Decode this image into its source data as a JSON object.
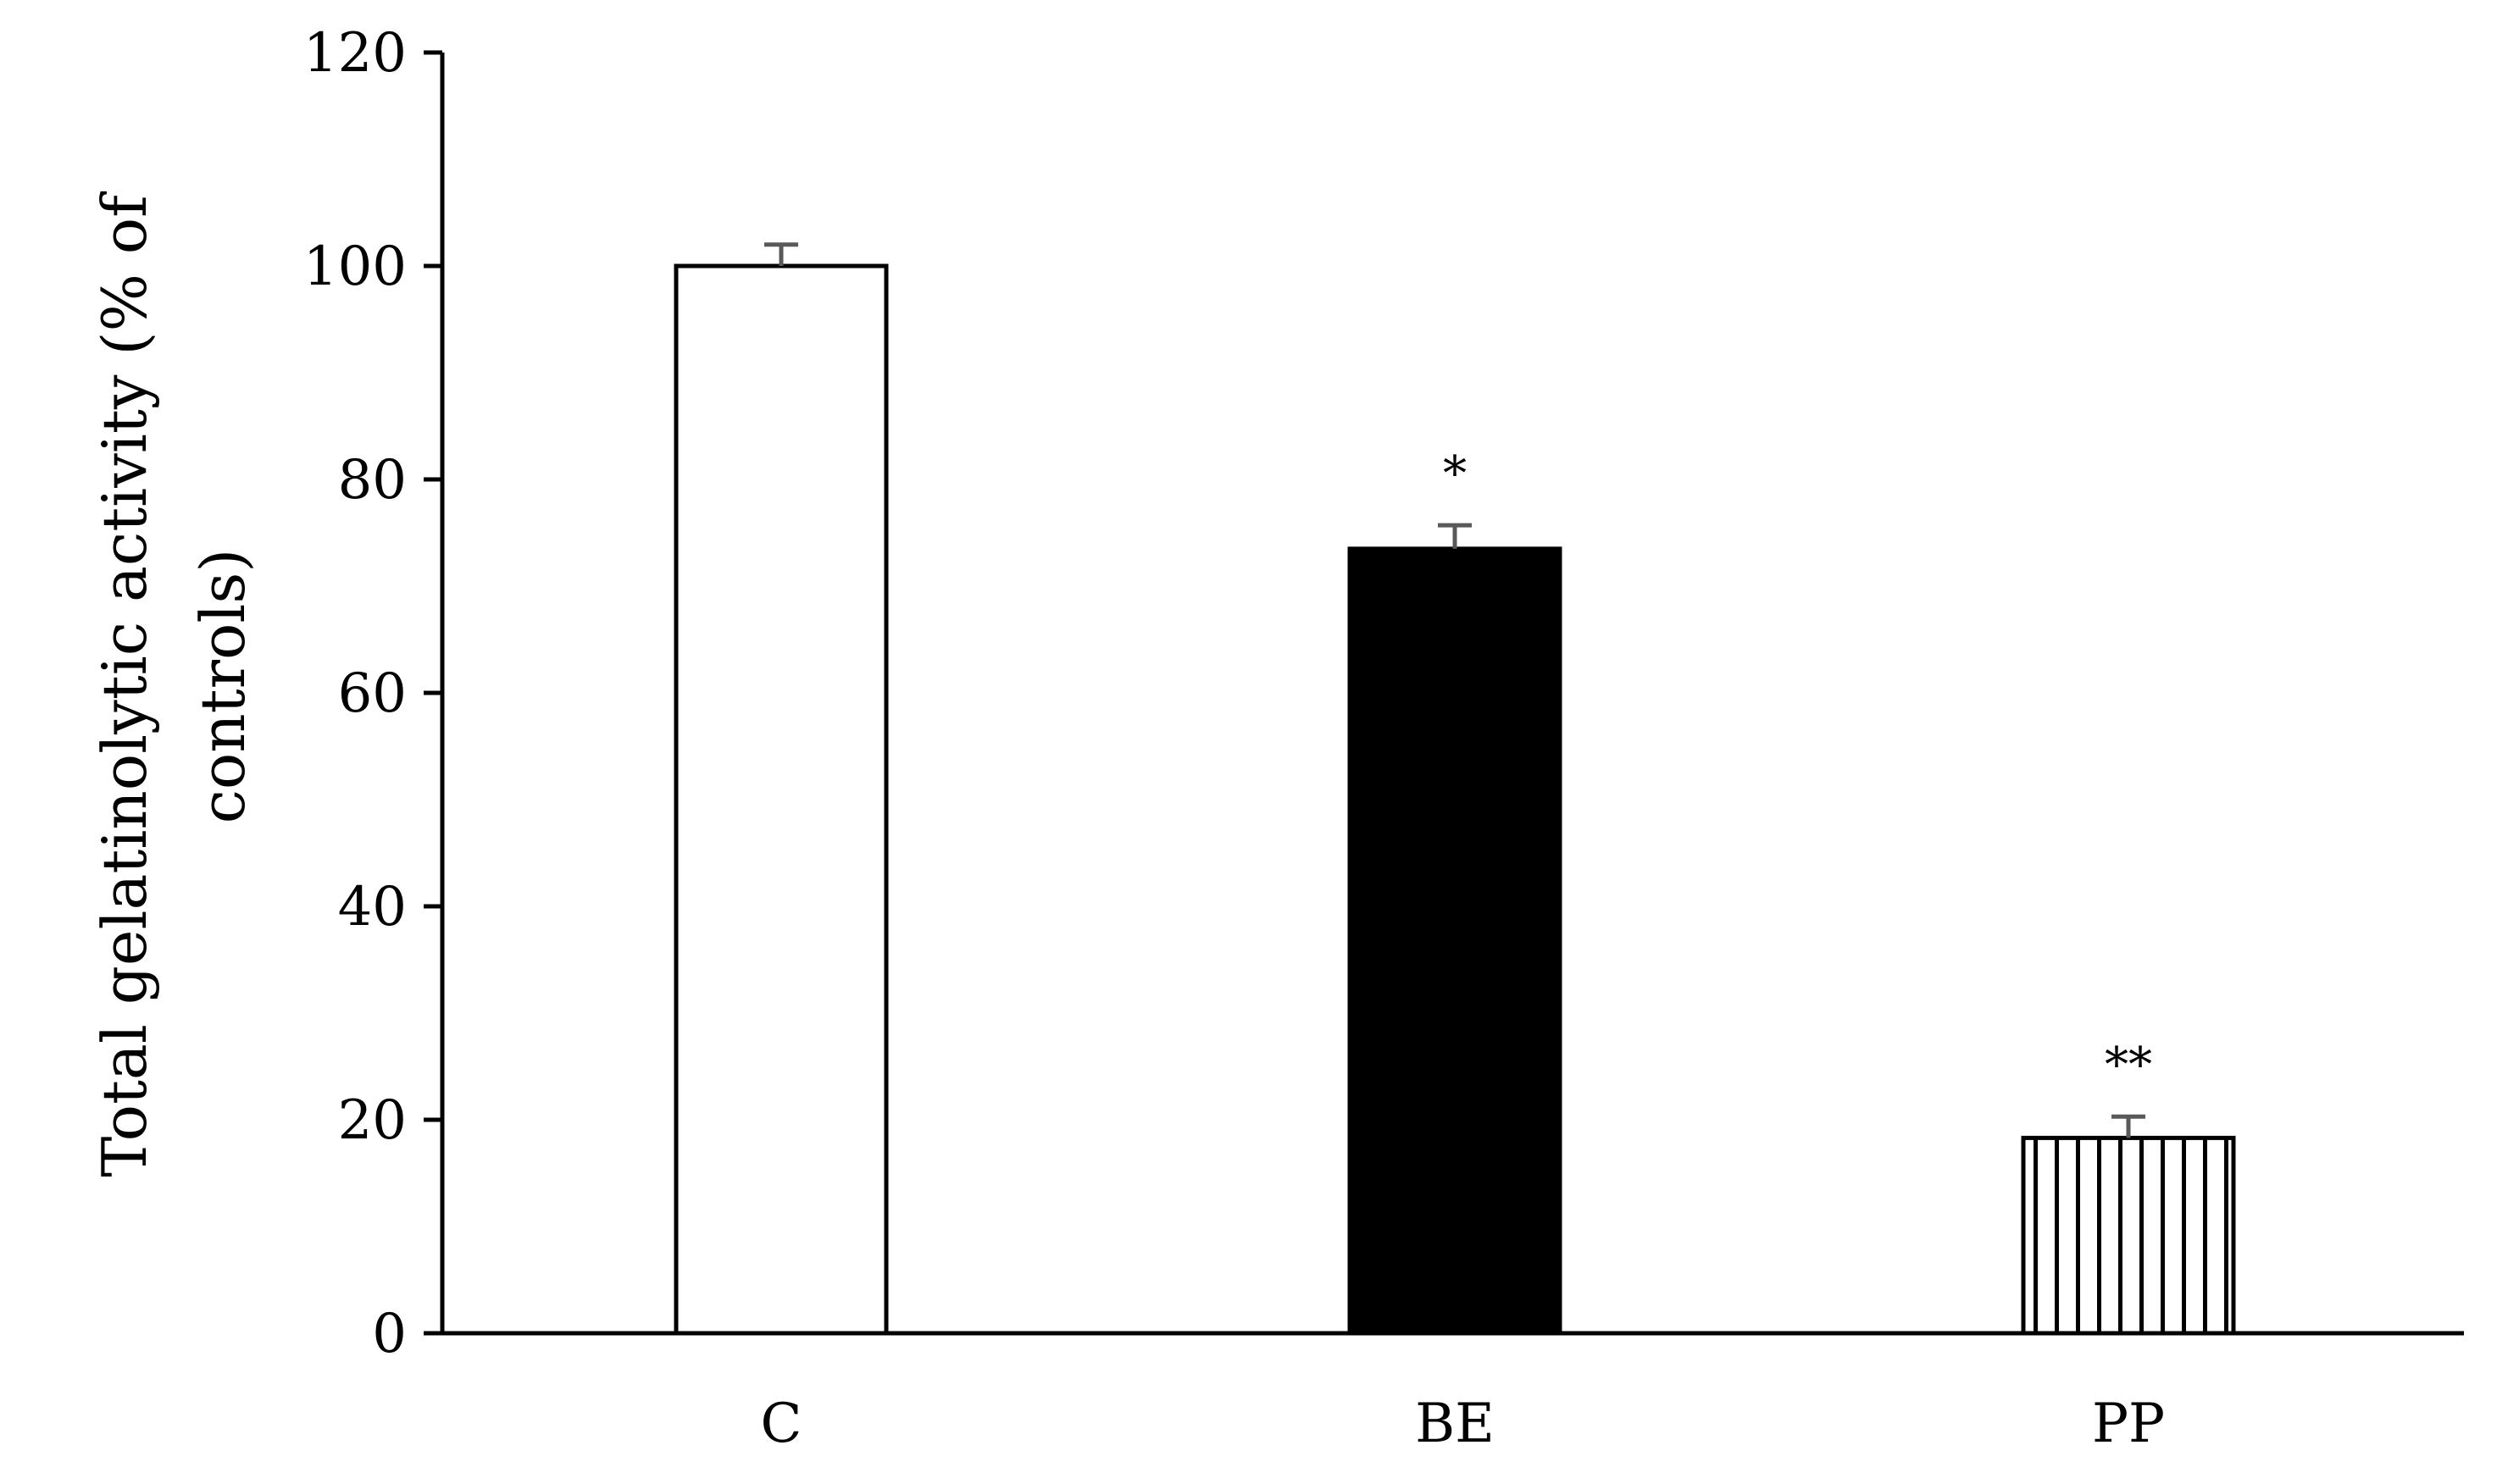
{
  "chart_data": {
    "type": "bar",
    "categories": [
      "C",
      "BE",
      "PP"
    ],
    "values": [
      100,
      73.5,
      18.3
    ],
    "errors": [
      2,
      2.2,
      2
    ],
    "significance": [
      "",
      "*",
      "**"
    ],
    "bar_styles": [
      "white",
      "black",
      "vertical-stripes"
    ],
    "title": "",
    "xlabel": "",
    "ylabel_lines": [
      "Total gelatinolytic activity (% of",
      "controls)"
    ],
    "ylim": [
      0,
      120
    ],
    "yticks": [
      "0",
      "20",
      "40",
      "60",
      "80",
      "100",
      "120"
    ],
    "grid": false,
    "legend": "none"
  },
  "colors": {
    "axis": "#000000",
    "bar_outline": "#000000",
    "bar_fill_black": "#000000",
    "bar_fill_white": "#ffffff",
    "error_bar": "#595959"
  }
}
